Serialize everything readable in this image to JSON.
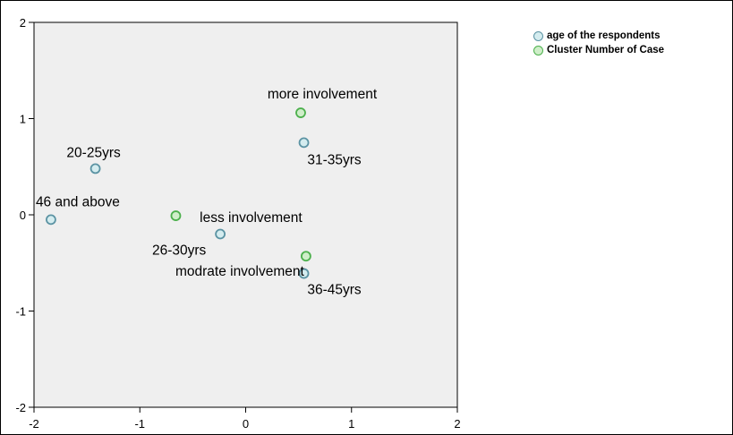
{
  "chart_data": {
    "type": "scatter",
    "xlim": [
      -2,
      2
    ],
    "ylim": [
      -2,
      2
    ],
    "xticks": [
      "-2",
      "-1",
      "0",
      "1",
      "2"
    ],
    "yticks": [
      "2",
      "1",
      "0",
      "-1",
      "-2"
    ],
    "grid": false,
    "legend_position": "top-right",
    "series": [
      {
        "name": "age of the respondents",
        "color": "#5b93a3",
        "fill": "#d4ecef",
        "points": [
          {
            "label": "20-25yrs",
            "x": -1.42,
            "y": 0.48
          },
          {
            "label": "31-35yrs",
            "x": 0.55,
            "y": 0.75
          },
          {
            "label": "46 and above",
            "x": -1.84,
            "y": -0.05
          },
          {
            "label": "26-30yrs",
            "x": -0.24,
            "y": -0.2
          },
          {
            "label": "36-45yrs",
            "x": 0.55,
            "y": -0.61
          }
        ]
      },
      {
        "name": "Cluster Number of Case",
        "color": "#4cb04c",
        "fill": "#cfeec9",
        "points": [
          {
            "label": "more involvement",
            "x": 0.52,
            "y": 1.06
          },
          {
            "label": "less involvement",
            "x": -0.66,
            "y": -0.01
          },
          {
            "label": "modrate involvement",
            "x": 0.57,
            "y": -0.43
          }
        ]
      }
    ]
  }
}
